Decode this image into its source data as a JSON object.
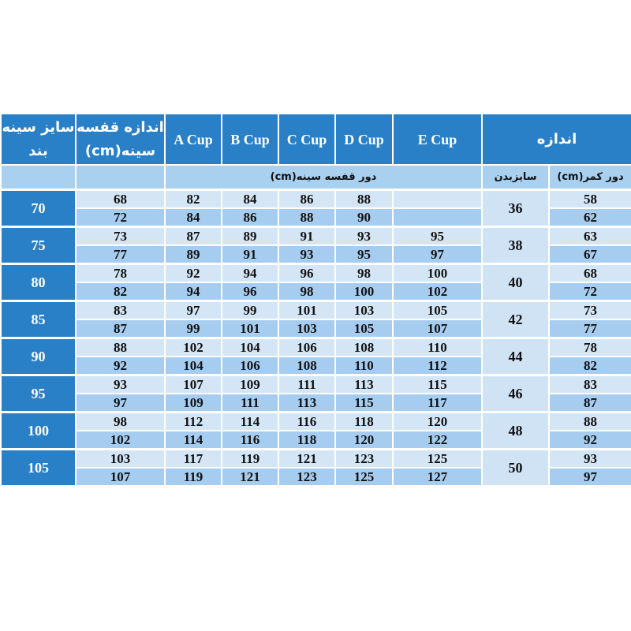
{
  "header": {
    "band_size": "سایز سینه بند",
    "underbust": "اندازه قفسه سینه(cm)",
    "cups": [
      "A Cup",
      "B Cup",
      "C Cup",
      "D Cup",
      "E Cup"
    ],
    "size_group": "اندازه"
  },
  "subheader": {
    "bust": "دور قفسه سینه(cm)",
    "body_size": "سایزبدن",
    "waist": "دور کمر(cm)"
  },
  "colors": {
    "header": "#2a80c6",
    "row_light": "#d4e6f6",
    "row_dark": "#a6cdef"
  },
  "rows": [
    {
      "band": "70",
      "size": "36",
      "lines": [
        [
          "68",
          "82",
          "84",
          "86",
          "88",
          "",
          "58"
        ],
        [
          "72",
          "84",
          "86",
          "88",
          "90",
          "",
          "62"
        ]
      ]
    },
    {
      "band": "75",
      "size": "38",
      "lines": [
        [
          "73",
          "87",
          "89",
          "91",
          "93",
          "95",
          "63"
        ],
        [
          "77",
          "89",
          "91",
          "93",
          "95",
          "97",
          "67"
        ]
      ]
    },
    {
      "band": "80",
      "size": "40",
      "lines": [
        [
          "78",
          "92",
          "94",
          "96",
          "98",
          "100",
          "68"
        ],
        [
          "82",
          "94",
          "96",
          "98",
          "100",
          "102",
          "72"
        ]
      ]
    },
    {
      "band": "85",
      "size": "42",
      "lines": [
        [
          "83",
          "97",
          "99",
          "101",
          "103",
          "105",
          "73"
        ],
        [
          "87",
          "99",
          "101",
          "103",
          "105",
          "107",
          "77"
        ]
      ]
    },
    {
      "band": "90",
      "size": "44",
      "lines": [
        [
          "88",
          "102",
          "104",
          "106",
          "108",
          "110",
          "78"
        ],
        [
          "92",
          "104",
          "106",
          "108",
          "110",
          "112",
          "82"
        ]
      ]
    },
    {
      "band": "95",
      "size": "46",
      "lines": [
        [
          "93",
          "107",
          "109",
          "111",
          "113",
          "115",
          "83"
        ],
        [
          "97",
          "109",
          "111",
          "113",
          "115",
          "117",
          "87"
        ]
      ]
    },
    {
      "band": "100",
      "size": "48",
      "lines": [
        [
          "98",
          "112",
          "114",
          "116",
          "118",
          "120",
          "88"
        ],
        [
          "102",
          "114",
          "116",
          "118",
          "120",
          "122",
          "92"
        ]
      ]
    },
    {
      "band": "105",
      "size": "50",
      "lines": [
        [
          "103",
          "117",
          "119",
          "121",
          "123",
          "125",
          "93"
        ],
        [
          "107",
          "119",
          "121",
          "123",
          "125",
          "127",
          "97"
        ]
      ]
    }
  ]
}
